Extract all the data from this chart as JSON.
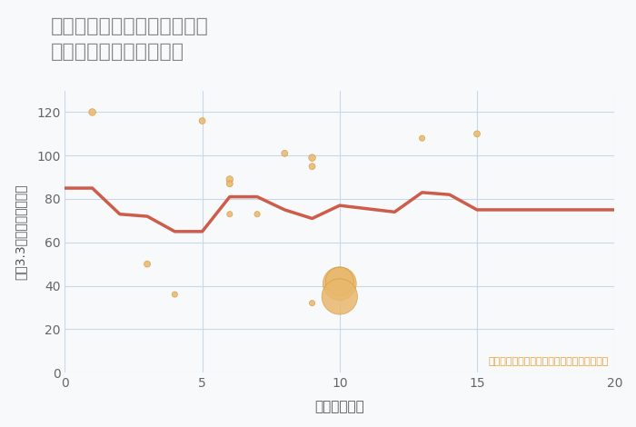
{
  "title": "兵庫県加古郡播磨町東本荘の\n駅距離別中古戸建て価格",
  "xlabel": "駅距離（分）",
  "ylabel": "坪（3.3㎡）単価（万円）",
  "annotation": "円の大きさは、取引のあった物件面積を示す",
  "scatter_x": [
    1,
    3,
    4,
    5,
    6,
    6,
    6,
    7,
    8,
    9,
    9,
    9,
    10,
    10,
    10,
    13,
    15
  ],
  "scatter_y": [
    120,
    50,
    36,
    116,
    89,
    87,
    73,
    73,
    101,
    99,
    95,
    32,
    41,
    42,
    35,
    108,
    110
  ],
  "scatter_size": [
    30,
    25,
    20,
    25,
    30,
    25,
    20,
    20,
    25,
    30,
    25,
    20,
    700,
    500,
    800,
    20,
    25
  ],
  "line_x": [
    0,
    1,
    2,
    3,
    4,
    5,
    6,
    7,
    8,
    9,
    10,
    12,
    13,
    14,
    15,
    17,
    20
  ],
  "line_y": [
    85,
    85,
    73,
    72,
    65,
    65,
    81,
    81,
    75,
    71,
    77,
    74,
    83,
    82,
    75,
    75,
    75
  ],
  "scatter_color": "#E8B86D",
  "scatter_edge_color": "#D4993A",
  "line_color": "#CD5C4A",
  "background_color": "#F8F9FA",
  "grid_color": "#C8D8E8",
  "title_color": "#888888",
  "annotation_color": "#E8A030",
  "xlim": [
    0,
    20
  ],
  "ylim": [
    0,
    130
  ],
  "xticks": [
    0,
    5,
    10,
    15,
    20
  ],
  "yticks": [
    0,
    20,
    40,
    60,
    80,
    100,
    120
  ]
}
